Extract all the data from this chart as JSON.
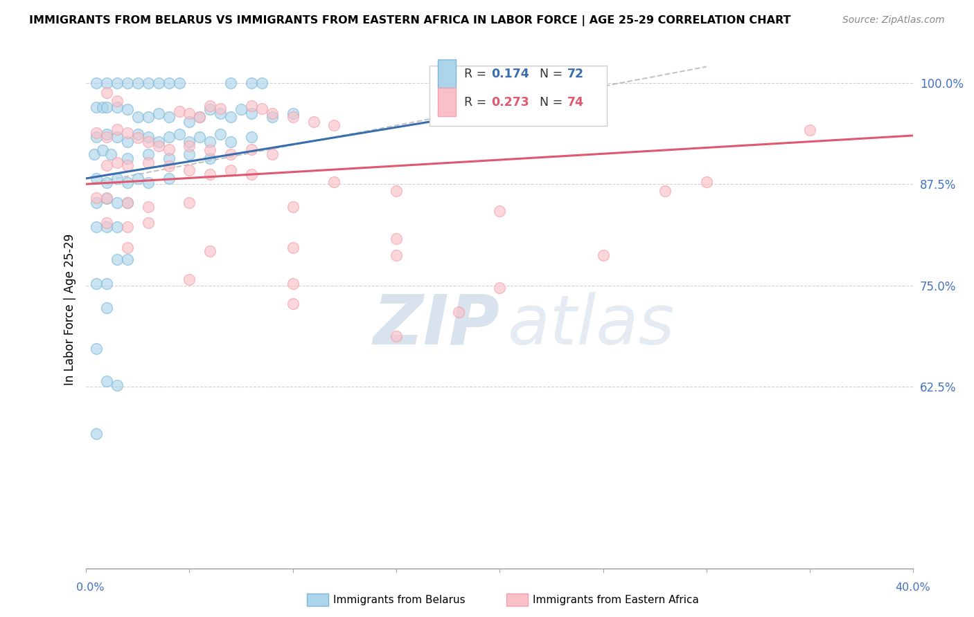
{
  "title": "IMMIGRANTS FROM BELARUS VS IMMIGRANTS FROM EASTERN AFRICA IN LABOR FORCE | AGE 25-29 CORRELATION CHART",
  "source": "Source: ZipAtlas.com",
  "ylabel": "In Labor Force | Age 25-29",
  "ytick_labels": [
    "100.0%",
    "87.5%",
    "75.0%",
    "62.5%"
  ],
  "ytick_vals": [
    1.0,
    0.875,
    0.75,
    0.625
  ],
  "xlim": [
    0.0,
    0.4
  ],
  "ylim": [
    0.4,
    1.04
  ],
  "legend_r1": "0.174",
  "legend_n1": "72",
  "legend_r2": "0.273",
  "legend_n2": "74",
  "blue_color": "#7ab8d9",
  "pink_color": "#f4a0aa",
  "blue_fill": "#acd4ea",
  "pink_fill": "#f9c0c8",
  "blue_line_color": "#3a6dab",
  "pink_line_color": "#e05870",
  "background_color": "#ffffff",
  "watermark_zip": "ZIP",
  "watermark_atlas": "atlas",
  "blue_scatter": [
    [
      0.005,
      1.0
    ],
    [
      0.01,
      1.0
    ],
    [
      0.015,
      1.0
    ],
    [
      0.02,
      1.0
    ],
    [
      0.025,
      1.0
    ],
    [
      0.03,
      1.0
    ],
    [
      0.035,
      1.0
    ],
    [
      0.04,
      1.0
    ],
    [
      0.045,
      1.0
    ],
    [
      0.07,
      1.0
    ],
    [
      0.08,
      1.0
    ],
    [
      0.085,
      1.0
    ],
    [
      0.18,
      1.0
    ],
    [
      0.005,
      0.97
    ],
    [
      0.008,
      0.97
    ],
    [
      0.01,
      0.97
    ],
    [
      0.015,
      0.97
    ],
    [
      0.02,
      0.967
    ],
    [
      0.025,
      0.958
    ],
    [
      0.03,
      0.958
    ],
    [
      0.035,
      0.962
    ],
    [
      0.04,
      0.958
    ],
    [
      0.05,
      0.952
    ],
    [
      0.055,
      0.958
    ],
    [
      0.06,
      0.967
    ],
    [
      0.065,
      0.962
    ],
    [
      0.07,
      0.958
    ],
    [
      0.075,
      0.967
    ],
    [
      0.08,
      0.962
    ],
    [
      0.09,
      0.958
    ],
    [
      0.1,
      0.962
    ],
    [
      0.005,
      0.933
    ],
    [
      0.01,
      0.937
    ],
    [
      0.015,
      0.933
    ],
    [
      0.02,
      0.927
    ],
    [
      0.025,
      0.937
    ],
    [
      0.03,
      0.933
    ],
    [
      0.035,
      0.927
    ],
    [
      0.04,
      0.933
    ],
    [
      0.045,
      0.937
    ],
    [
      0.05,
      0.927
    ],
    [
      0.055,
      0.933
    ],
    [
      0.06,
      0.927
    ],
    [
      0.065,
      0.937
    ],
    [
      0.07,
      0.927
    ],
    [
      0.08,
      0.933
    ],
    [
      0.004,
      0.912
    ],
    [
      0.008,
      0.917
    ],
    [
      0.012,
      0.912
    ],
    [
      0.02,
      0.907
    ],
    [
      0.03,
      0.912
    ],
    [
      0.04,
      0.907
    ],
    [
      0.05,
      0.912
    ],
    [
      0.06,
      0.907
    ],
    [
      0.005,
      0.882
    ],
    [
      0.01,
      0.877
    ],
    [
      0.015,
      0.882
    ],
    [
      0.02,
      0.877
    ],
    [
      0.025,
      0.882
    ],
    [
      0.03,
      0.877
    ],
    [
      0.04,
      0.882
    ],
    [
      0.005,
      0.852
    ],
    [
      0.01,
      0.857
    ],
    [
      0.015,
      0.852
    ],
    [
      0.02,
      0.852
    ],
    [
      0.005,
      0.822
    ],
    [
      0.01,
      0.822
    ],
    [
      0.015,
      0.822
    ],
    [
      0.015,
      0.782
    ],
    [
      0.02,
      0.782
    ],
    [
      0.005,
      0.752
    ],
    [
      0.01,
      0.752
    ],
    [
      0.01,
      0.722
    ],
    [
      0.005,
      0.672
    ],
    [
      0.01,
      0.632
    ],
    [
      0.015,
      0.627
    ],
    [
      0.005,
      0.567
    ]
  ],
  "pink_scatter": [
    [
      0.01,
      0.988
    ],
    [
      0.015,
      0.978
    ],
    [
      0.045,
      0.965
    ],
    [
      0.05,
      0.962
    ],
    [
      0.055,
      0.958
    ],
    [
      0.06,
      0.972
    ],
    [
      0.065,
      0.968
    ],
    [
      0.08,
      0.972
    ],
    [
      0.085,
      0.968
    ],
    [
      0.09,
      0.962
    ],
    [
      0.1,
      0.958
    ],
    [
      0.11,
      0.952
    ],
    [
      0.12,
      0.948
    ],
    [
      0.005,
      0.938
    ],
    [
      0.01,
      0.933
    ],
    [
      0.015,
      0.943
    ],
    [
      0.02,
      0.938
    ],
    [
      0.025,
      0.932
    ],
    [
      0.03,
      0.927
    ],
    [
      0.035,
      0.922
    ],
    [
      0.04,
      0.918
    ],
    [
      0.05,
      0.922
    ],
    [
      0.06,
      0.917
    ],
    [
      0.07,
      0.912
    ],
    [
      0.08,
      0.918
    ],
    [
      0.09,
      0.912
    ],
    [
      0.01,
      0.898
    ],
    [
      0.015,
      0.902
    ],
    [
      0.02,
      0.898
    ],
    [
      0.03,
      0.902
    ],
    [
      0.04,
      0.897
    ],
    [
      0.05,
      0.892
    ],
    [
      0.06,
      0.887
    ],
    [
      0.07,
      0.892
    ],
    [
      0.08,
      0.887
    ],
    [
      0.12,
      0.878
    ],
    [
      0.15,
      0.867
    ],
    [
      0.005,
      0.858
    ],
    [
      0.01,
      0.858
    ],
    [
      0.02,
      0.852
    ],
    [
      0.03,
      0.847
    ],
    [
      0.05,
      0.852
    ],
    [
      0.1,
      0.847
    ],
    [
      0.2,
      0.842
    ],
    [
      0.01,
      0.827
    ],
    [
      0.02,
      0.822
    ],
    [
      0.03,
      0.827
    ],
    [
      0.15,
      0.808
    ],
    [
      0.02,
      0.797
    ],
    [
      0.06,
      0.792
    ],
    [
      0.1,
      0.797
    ],
    [
      0.15,
      0.787
    ],
    [
      0.25,
      0.787
    ],
    [
      0.05,
      0.757
    ],
    [
      0.1,
      0.752
    ],
    [
      0.2,
      0.747
    ],
    [
      0.1,
      0.727
    ],
    [
      0.18,
      0.717
    ],
    [
      0.15,
      0.687
    ],
    [
      0.28,
      0.867
    ],
    [
      0.3,
      0.878
    ],
    [
      0.35,
      0.942
    ]
  ],
  "blue_line_x": [
    0.0,
    0.19
  ],
  "blue_line_y": [
    0.882,
    0.962
  ],
  "pink_line_x": [
    0.0,
    0.4
  ],
  "pink_line_y": [
    0.875,
    0.935
  ],
  "diag_line_x": [
    0.0,
    0.3
  ],
  "diag_line_y": [
    0.875,
    1.02
  ]
}
